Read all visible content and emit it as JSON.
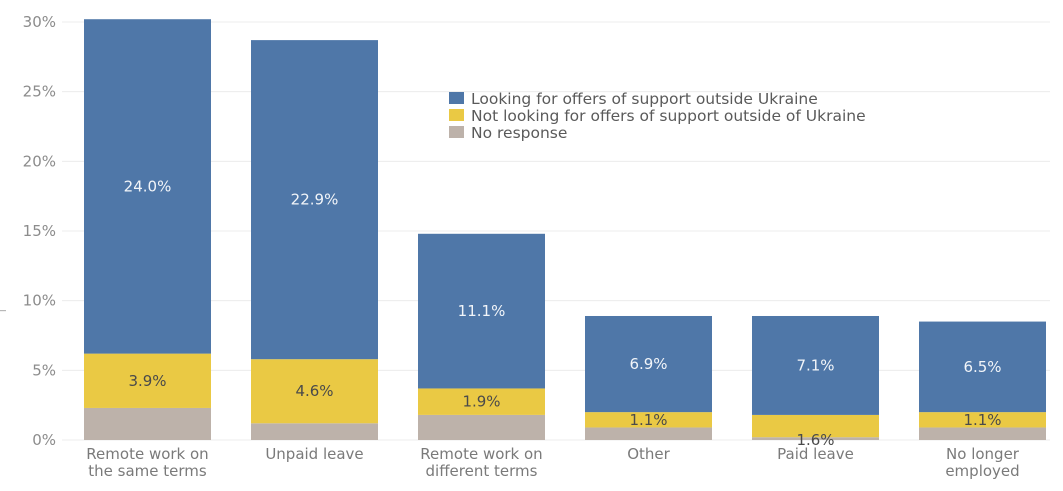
{
  "chart_data": {
    "type": "bar",
    "stacked": true,
    "categories": [
      [
        "Remote work on",
        "the same terms"
      ],
      [
        "Unpaid leave"
      ],
      [
        "Remote work on",
        "different terms"
      ],
      [
        "Other"
      ],
      [
        "Paid leave"
      ],
      [
        "No longer",
        "employed"
      ]
    ],
    "series": [
      {
        "name": "No response",
        "color": "#bdb2aa",
        "values": [
          2.3,
          1.2,
          1.8,
          0.9,
          0.2,
          0.9
        ],
        "labels": [
          "",
          "",
          "",
          "",
          "",
          ""
        ]
      },
      {
        "name": "Not looking for offers of support outside of Ukraine",
        "color": "#eac944",
        "values": [
          3.9,
          4.6,
          1.9,
          1.1,
          1.6,
          1.1
        ],
        "labels": [
          "3.9%",
          "4.6%",
          "1.9%",
          "1.1%",
          "1.6%",
          "1.1%"
        ]
      },
      {
        "name": "Looking for offers of support outside Ukraine",
        "color": "#4f77a8",
        "values": [
          24.0,
          22.9,
          11.1,
          6.9,
          7.1,
          6.5
        ],
        "labels": [
          "24.0%",
          "22.9%",
          "11.1%",
          "6.9%",
          "7.1%",
          "6.5%"
        ]
      }
    ],
    "legend_order": [
      "Looking for offers of support outside Ukraine",
      "Not looking for offers of support outside of Ukraine",
      "No response"
    ],
    "yticks": [
      0,
      5,
      10,
      15,
      20,
      25,
      30
    ],
    "ytick_labels": [
      "0%",
      "5%",
      "10%",
      "15%",
      "20%",
      "25%",
      "30%"
    ],
    "ylim": [
      0,
      30
    ],
    "title": "",
    "xlabel": "",
    "ylabel": "",
    "grid": true,
    "legend_position": "upper-right"
  }
}
